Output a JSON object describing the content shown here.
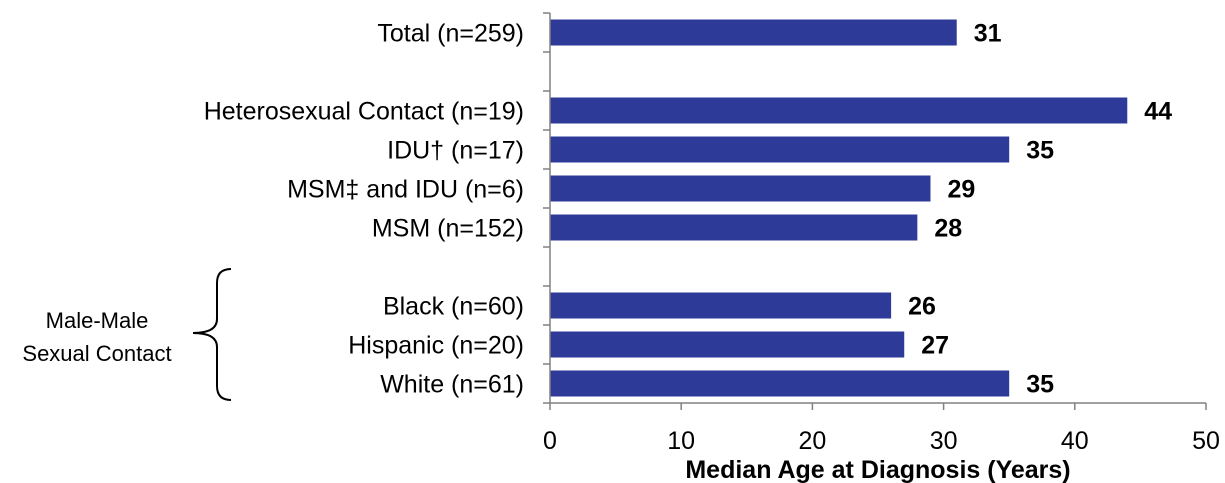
{
  "chart_data": {
    "type": "bar",
    "orientation": "horizontal",
    "categories": [
      "Total (n=259)",
      "",
      "Heterosexual Contact (n=19)",
      "IDU† (n=17)",
      "MSM‡ and IDU (n=6)",
      "MSM (n=152)",
      "",
      "Black (n=60)",
      "Hispanic (n=20)",
      "White (n=61)"
    ],
    "values": [
      31,
      null,
      44,
      35,
      29,
      28,
      null,
      26,
      27,
      35
    ],
    "value_labels": [
      "31",
      "",
      "44",
      "35",
      "29",
      "28",
      "",
      "26",
      "27",
      "35"
    ],
    "xlabel": "Median Age at Diagnosis (Years)",
    "ylabel": "",
    "xlim": [
      0,
      50
    ],
    "xticks": [
      "0",
      "10",
      "20",
      "30",
      "40",
      "50"
    ],
    "grid": false,
    "legend": "none",
    "bar_color": "#2E3A97",
    "group_bracket": {
      "label_line1": "Male-Male",
      "label_line2": "Sexual Contact"
    }
  }
}
